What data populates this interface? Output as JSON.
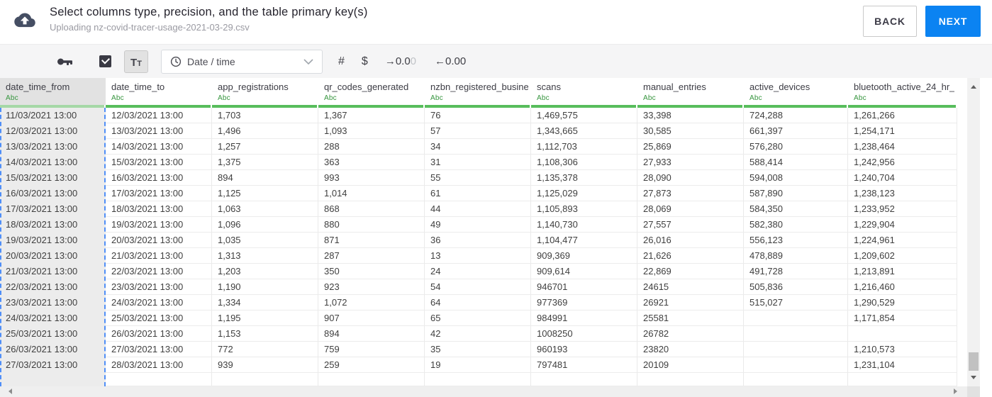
{
  "header": {
    "title": "Select columns type, precision, and the table primary key(s)",
    "subtitle": "Uploading nz-covid-tracer-usage-2021-03-29.csv",
    "back_label": "BACK",
    "next_label": "NEXT"
  },
  "toolbar": {
    "primary_key_icon": "key-icon",
    "checkbox_checked": true,
    "text_type_button": {
      "large": "T",
      "small": "T"
    },
    "type_dropdown": {
      "icon": "clock-icon",
      "value": "Date / time"
    },
    "number_button_label": "#",
    "currency_button_label": "$",
    "decimal_increase": {
      "arrow": "→",
      "dark": "0.0",
      "light": "0"
    },
    "decimal_decrease": {
      "arrow": "←",
      "label": "0.00"
    }
  },
  "table": {
    "columns": [
      {
        "name": "date_time_from",
        "type": "Abc",
        "selected": true
      },
      {
        "name": "date_time_to",
        "type": "Abc",
        "selected": false
      },
      {
        "name": "app_registrations",
        "type": "Abc",
        "selected": false
      },
      {
        "name": "qr_codes_generated",
        "type": "Abc",
        "selected": false
      },
      {
        "name": "nzbn_registered_busine",
        "type": "Abc",
        "selected": false
      },
      {
        "name": "scans",
        "type": "Abc",
        "selected": false
      },
      {
        "name": "manual_entries",
        "type": "Abc",
        "selected": false
      },
      {
        "name": "active_devices",
        "type": "Abc",
        "selected": false
      },
      {
        "name": "bluetooth_active_24_hr_",
        "type": "Abc",
        "selected": false
      }
    ],
    "rows": [
      [
        "11/03/2021 13:00",
        "12/03/2021 13:00",
        "1,703",
        "1,367",
        "76",
        "1,469,575",
        "33,398",
        "724,288",
        "1,261,266"
      ],
      [
        "12/03/2021 13:00",
        "13/03/2021 13:00",
        "1,496",
        "1,093",
        "57",
        "1,343,665",
        "30,585",
        "661,397",
        "1,254,171"
      ],
      [
        "13/03/2021 13:00",
        "14/03/2021 13:00",
        "1,257",
        "288",
        "34",
        "1,112,703",
        "25,869",
        "576,280",
        "1,238,464"
      ],
      [
        "14/03/2021 13:00",
        "15/03/2021 13:00",
        "1,375",
        "363",
        "31",
        "1,108,306",
        "27,933",
        "588,414",
        "1,242,956"
      ],
      [
        "15/03/2021 13:00",
        "16/03/2021 13:00",
        "894",
        "993",
        "55",
        "1,135,378",
        "28,090",
        "594,008",
        "1,240,704"
      ],
      [
        "16/03/2021 13:00",
        "17/03/2021 13:00",
        "1,125",
        "1,014",
        "61",
        "1,125,029",
        "27,873",
        "587,890",
        "1,238,123"
      ],
      [
        "17/03/2021 13:00",
        "18/03/2021 13:00",
        "1,063",
        "868",
        "44",
        "1,105,893",
        "28,069",
        "584,350",
        "1,233,952"
      ],
      [
        "18/03/2021 13:00",
        "19/03/2021 13:00",
        "1,096",
        "880",
        "49",
        "1,140,730",
        "27,557",
        "582,380",
        "1,229,904"
      ],
      [
        "19/03/2021 13:00",
        "20/03/2021 13:00",
        "1,035",
        "871",
        "36",
        "1,104,477",
        "26,016",
        "556,123",
        "1,224,961"
      ],
      [
        "20/03/2021 13:00",
        "21/03/2021 13:00",
        "1,313",
        "287",
        "13",
        "909,369",
        "21,626",
        "478,889",
        "1,209,602"
      ],
      [
        "21/03/2021 13:00",
        "22/03/2021 13:00",
        "1,203",
        "350",
        "24",
        "909,614",
        "22,869",
        "491,728",
        "1,213,891"
      ],
      [
        "22/03/2021 13:00",
        "23/03/2021 13:00",
        "1,190",
        "923",
        "54",
        "946701",
        "24615",
        "505,836",
        "1,216,460"
      ],
      [
        "23/03/2021 13:00",
        "24/03/2021 13:00",
        "1,334",
        "1,072",
        "64",
        "977369",
        "26921",
        "515,027",
        "1,290,529"
      ],
      [
        "24/03/2021 13:00",
        "25/03/2021 13:00",
        "1,195",
        "907",
        "65",
        "984991",
        "25581",
        "",
        "1,171,854"
      ],
      [
        "25/03/2021 13:00",
        "26/03/2021 13:00",
        "1,153",
        "894",
        "42",
        "1008250",
        "26782",
        "",
        ""
      ],
      [
        "26/03/2021 13:00",
        "27/03/2021 13:00",
        "772",
        "759",
        "35",
        "960193",
        "23820",
        "",
        "1,210,573"
      ],
      [
        "27/03/2021 13:00",
        "28/03/2021 13:00",
        "939",
        "259",
        "19",
        "797481",
        "20109",
        "",
        "1,231,104"
      ]
    ]
  },
  "colors": {
    "accent_blue": "#0b83f2",
    "type_label_green": "#37963f",
    "column_bar_green": "#58bd5c",
    "selected_column_bar_green": "#a5d8a6",
    "selection_dashed_blue": "#4f8ef7",
    "toolbar_background": "#f5f5f6"
  }
}
